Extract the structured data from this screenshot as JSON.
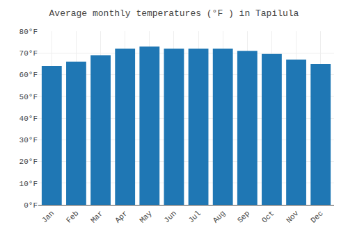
{
  "chart_data": {
    "type": "bar",
    "title": "Average monthly temperatures (°F ) in Tapilula",
    "categories": [
      "Jan",
      "Feb",
      "Mar",
      "Apr",
      "May",
      "Jun",
      "Jul",
      "Aug",
      "Sep",
      "Oct",
      "Nov",
      "Dec"
    ],
    "values": [
      64.0,
      66.0,
      69.0,
      72.0,
      73.0,
      72.0,
      72.0,
      72.0,
      71.0,
      69.5,
      67.0,
      65.0
    ],
    "ylim": [
      0,
      80
    ],
    "yticks": [
      {
        "value": 0,
        "label": "0°F"
      },
      {
        "value": 10,
        "label": "10°F"
      },
      {
        "value": 20,
        "label": "20°F"
      },
      {
        "value": 30,
        "label": "30°F"
      },
      {
        "value": 40,
        "label": "40°F"
      },
      {
        "value": 50,
        "label": "50°F"
      },
      {
        "value": 60,
        "label": "60°F"
      },
      {
        "value": 70,
        "label": "70°F"
      },
      {
        "value": 80,
        "label": "80°F"
      }
    ],
    "grid": true
  }
}
